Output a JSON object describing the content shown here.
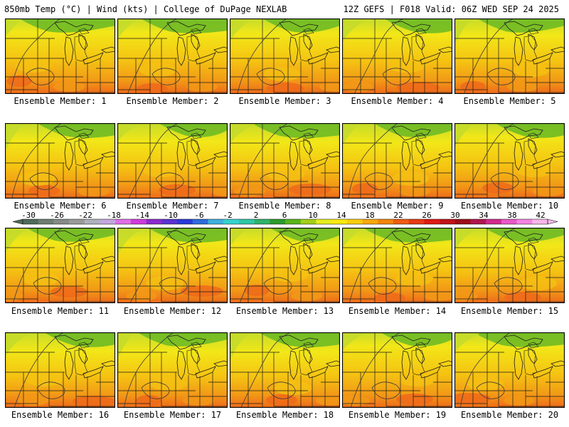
{
  "header": {
    "left": "850mb Temp (°C) | Wind (kts) | College of DuPage NEXLAB",
    "right": "12Z GEFS | F018 Valid: 06Z WED SEP 24 2025"
  },
  "members": [
    "Ensemble Member: 1",
    "Ensemble Member: 2",
    "Ensemble Member: 3",
    "Ensemble Member: 4",
    "Ensemble Member: 5",
    "Ensemble Member: 6",
    "Ensemble Member: 7",
    "Ensemble Member: 8",
    "Ensemble Member: 9",
    "Ensemble Member: 10",
    "Ensemble Member: 11",
    "Ensemble Member: 12",
    "Ensemble Member: 13",
    "Ensemble Member: 14",
    "Ensemble Member: 15",
    "Ensemble Member: 16",
    "Ensemble Member: 17",
    "Ensemble Member: 18",
    "Ensemble Member: 19",
    "Ensemble Member: 20"
  ],
  "colorbar": {
    "labels": [
      "-30",
      "-26",
      "-22",
      "-18",
      "-14",
      "-10",
      "-6",
      "-2",
      "2",
      "6",
      "10",
      "14",
      "18",
      "22",
      "26",
      "30",
      "34",
      "38",
      "42"
    ],
    "colors": [
      "#4f6a5a",
      "#6e7d72",
      "#878b87",
      "#9a9a9a",
      "#aeb1bd",
      "#c3a6de",
      "#e06de6",
      "#cf3bdb",
      "#8b2bcd",
      "#5a32d0",
      "#2b3ad8",
      "#2f6cdb",
      "#3fb0dd",
      "#35d2d0",
      "#31c6a6",
      "#2fb36a",
      "#2c9a2c",
      "#59b41c",
      "#a4cf18",
      "#e5ed20",
      "#fbe812",
      "#f9cd10",
      "#f7a810",
      "#f3850e",
      "#ee5c12",
      "#e63a14",
      "#df1a16",
      "#c11218",
      "#9c0e1a",
      "#b0164e",
      "#d02a8e",
      "#e858c8",
      "#f383e4",
      "#f6b7ea"
    ]
  },
  "palette": {
    "green": "#68b824",
    "yellowgreen": "#c5dc2a",
    "yellow": "#f2e718",
    "gold": "#f5c312",
    "orange": "#f29a16",
    "red_orange": "#ee6a1a"
  }
}
